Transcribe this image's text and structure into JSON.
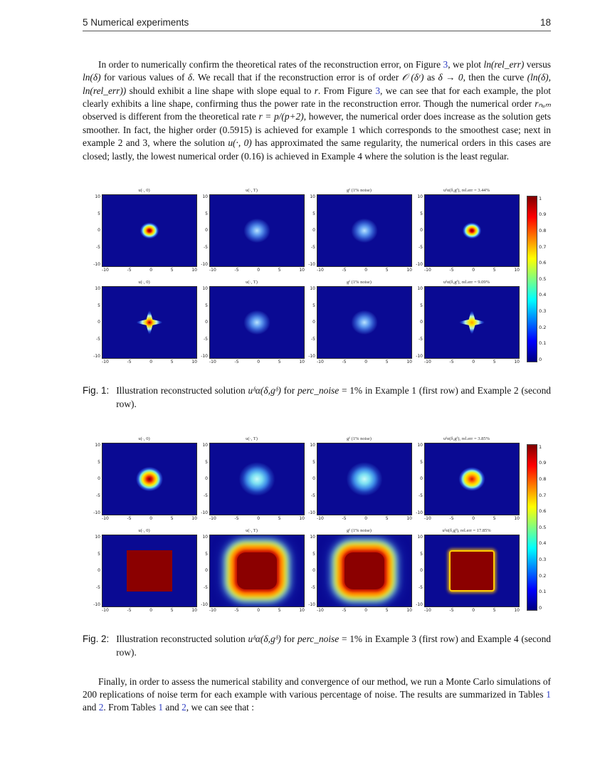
{
  "header": {
    "section": "5 Numerical experiments",
    "page_number": "18"
  },
  "paragraphs": {
    "p1": {
      "segments": [
        {
          "t": "In order to numerically confirm the theoretical rates of the reconstruction error, on Figure ",
          "s": ""
        },
        {
          "t": "3",
          "s": "link"
        },
        {
          "t": ", we plot ",
          "s": ""
        },
        {
          "t": "ln(rel_err)",
          "s": "i"
        },
        {
          "t": " versus ",
          "s": ""
        },
        {
          "t": "ln(δ)",
          "s": "i"
        },
        {
          "t": " for various values of ",
          "s": ""
        },
        {
          "t": "δ",
          "s": "i"
        },
        {
          "t": ". We recall that if the reconstruction error is of order ",
          "s": ""
        },
        {
          "t": "𝒪 (δʳ)",
          "s": "i"
        },
        {
          "t": " as ",
          "s": ""
        },
        {
          "t": "δ → 0",
          "s": "i"
        },
        {
          "t": ", then the curve ",
          "s": ""
        },
        {
          "t": "(ln(δ), ln(rel_err))",
          "s": "i"
        },
        {
          "t": " should exhibit a line shape with slope equal to ",
          "s": ""
        },
        {
          "t": "r",
          "s": "i"
        },
        {
          "t": ". From Figure ",
          "s": ""
        },
        {
          "t": "3",
          "s": "link"
        },
        {
          "t": ", we can see that for each example, the plot clearly exhibits a line shape, confirming thus the power rate in the reconstruction error. Though the numerical order ",
          "s": ""
        },
        {
          "t": "rₙᵤₘ",
          "s": "i"
        },
        {
          "t": " observed is different from the theoretical rate ",
          "s": ""
        },
        {
          "t": "r = p/(p+2)",
          "s": "i"
        },
        {
          "t": ", however, the numerical order does increase as the solution gets smoother. In fact, the higher order (0.5915) is achieved for example 1 which corresponds to the smoothest case; next in example 2 and 3, where the solution ",
          "s": ""
        },
        {
          "t": "u(·, 0)",
          "s": "i"
        },
        {
          "t": " has approximated the same regularity, the numerical orders in this cases are closed; lastly, the lowest numerical order (0.16) is achieved in Example 4 where the solution is the least regular.",
          "s": ""
        }
      ]
    },
    "p2": {
      "segments": [
        {
          "t": "Finally, in order to assess the numerical stability and convergence of our method, we run a Monte Carlo simulations of 200 replications of noise term for each example with various percentage of noise. The results are summarized in Tables ",
          "s": ""
        },
        {
          "t": "1",
          "s": "link"
        },
        {
          "t": " and ",
          "s": ""
        },
        {
          "t": "2",
          "s": "link"
        },
        {
          "t": ". From Tables ",
          "s": ""
        },
        {
          "t": "1",
          "s": "link"
        },
        {
          "t": " and ",
          "s": ""
        },
        {
          "t": "2",
          "s": "link"
        },
        {
          "t": ", we can see that :",
          "s": ""
        }
      ]
    }
  },
  "axis": {
    "x_ticks": [
      "-10",
      "-5",
      "0",
      "5",
      "10"
    ],
    "y_ticks": [
      "10",
      "5",
      "0",
      "-5",
      "-10"
    ],
    "x_range": [
      -10,
      10
    ],
    "y_range": [
      -10,
      10
    ]
  },
  "colorbar": {
    "ticks": [
      "1",
      "0.9",
      "0.8",
      "0.7",
      "0.6",
      "0.5",
      "0.4",
      "0.3",
      "0.2",
      "0.1",
      "0"
    ],
    "colormap": "jet"
  },
  "colors": {
    "panel_background": "#0a0a93",
    "max_value_red": "#7f0000",
    "link_blue": "#2e3ec4"
  },
  "figures": [
    {
      "name": "figure-1",
      "rows": [
        {
          "panels": [
            {
              "title": "u(·, 0)",
              "blob": "gauss-small"
            },
            {
              "title": "u(·, T)",
              "blob": "faint-blue"
            },
            {
              "title": "gᵟ (1% noise)",
              "blob": "faint-blue"
            },
            {
              "title": "uᵟα(δ,gᵟ), rel.err = 3.44%",
              "blob": "gauss-small"
            }
          ]
        },
        {
          "panels": [
            {
              "title": "u(·, 0)",
              "blob": "star-red"
            },
            {
              "title": "u(·, T)",
              "blob": "faint-blue"
            },
            {
              "title": "gᵟ (1% noise)",
              "blob": "faint-blue"
            },
            {
              "title": "uᵟα(δ,gᵟ), rel.err = 9.09%",
              "blob": "star-yellow"
            }
          ]
        }
      ],
      "caption": {
        "label": "Fig. 1:",
        "segments": [
          {
            "t": "Illustration reconstructed solution ",
            "s": ""
          },
          {
            "t": "uᵟα(δ,gᵟ)",
            "s": "i"
          },
          {
            "t": " for ",
            "s": ""
          },
          {
            "t": "perc_noise",
            "s": "i"
          },
          {
            "t": " = 1% in Example 1 (first row) and Example 2 (second row).",
            "s": ""
          }
        ]
      }
    },
    {
      "name": "figure-2",
      "rows": [
        {
          "panels": [
            {
              "title": "u(·, 0)",
              "blob": "round-red"
            },
            {
              "title": "u(·, T)",
              "blob": "cyan-large"
            },
            {
              "title": "gᵟ (1% noise)",
              "blob": "cyan-large"
            },
            {
              "title": "uᵟα(δ,gᵟ), rel.err = 3.85%",
              "blob": "round-recon"
            }
          ]
        },
        {
          "panels": [
            {
              "title": "u(·, 0)",
              "blob": "square-sharp"
            },
            {
              "title": "u(·, T)",
              "blob": "square-blur"
            },
            {
              "title": "gᵟ (1% noise)",
              "blob": "square-blur"
            },
            {
              "title": "uᵟα(δ,gᵟ), rel.err = 17.85%",
              "blob": "square-recon"
            }
          ]
        }
      ],
      "caption": {
        "label": "Fig. 2:",
        "segments": [
          {
            "t": "Illustration reconstructed solution ",
            "s": ""
          },
          {
            "t": "uᵟα(δ,gᵟ)",
            "s": "i"
          },
          {
            "t": " for ",
            "s": ""
          },
          {
            "t": "perc_noise",
            "s": "i"
          },
          {
            "t": " = 1% in Example 3 (first row) and Example 4 (second row).",
            "s": ""
          }
        ]
      }
    }
  ]
}
